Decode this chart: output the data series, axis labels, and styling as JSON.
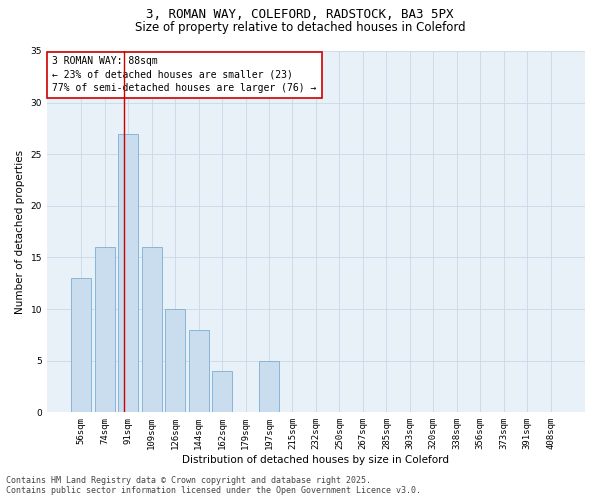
{
  "title1": "3, ROMAN WAY, COLEFORD, RADSTOCK, BA3 5PX",
  "title2": "Size of property relative to detached houses in Coleford",
  "xlabel": "Distribution of detached houses by size in Coleford",
  "ylabel": "Number of detached properties",
  "categories": [
    "56sqm",
    "74sqm",
    "91sqm",
    "109sqm",
    "126sqm",
    "144sqm",
    "162sqm",
    "179sqm",
    "197sqm",
    "215sqm",
    "232sqm",
    "250sqm",
    "267sqm",
    "285sqm",
    "303sqm",
    "320sqm",
    "338sqm",
    "356sqm",
    "373sqm",
    "391sqm",
    "408sqm"
  ],
  "values": [
    13,
    16,
    27,
    16,
    10,
    8,
    4,
    0,
    5,
    0,
    0,
    0,
    0,
    0,
    0,
    0,
    0,
    0,
    0,
    0,
    0
  ],
  "bar_color": "#c9ddef",
  "bar_edge_color": "#7bafd4",
  "grid_color": "#c8d8e8",
  "background_color": "#e8f0f8",
  "annotation_text": "3 ROMAN WAY: 88sqm\n← 23% of detached houses are smaller (23)\n77% of semi-detached houses are larger (76) →",
  "annotation_box_color": "#ffffff",
  "annotation_box_edge": "#cc0000",
  "vline_x": 1.82,
  "vline_color": "#cc0000",
  "ylim": [
    0,
    35
  ],
  "yticks": [
    0,
    5,
    10,
    15,
    20,
    25,
    30,
    35
  ],
  "footer1": "Contains HM Land Registry data © Crown copyright and database right 2025.",
  "footer2": "Contains public sector information licensed under the Open Government Licence v3.0.",
  "title_fontsize": 9,
  "subtitle_fontsize": 8.5,
  "axis_label_fontsize": 7.5,
  "tick_fontsize": 6.5,
  "annotation_fontsize": 7,
  "footer_fontsize": 6
}
